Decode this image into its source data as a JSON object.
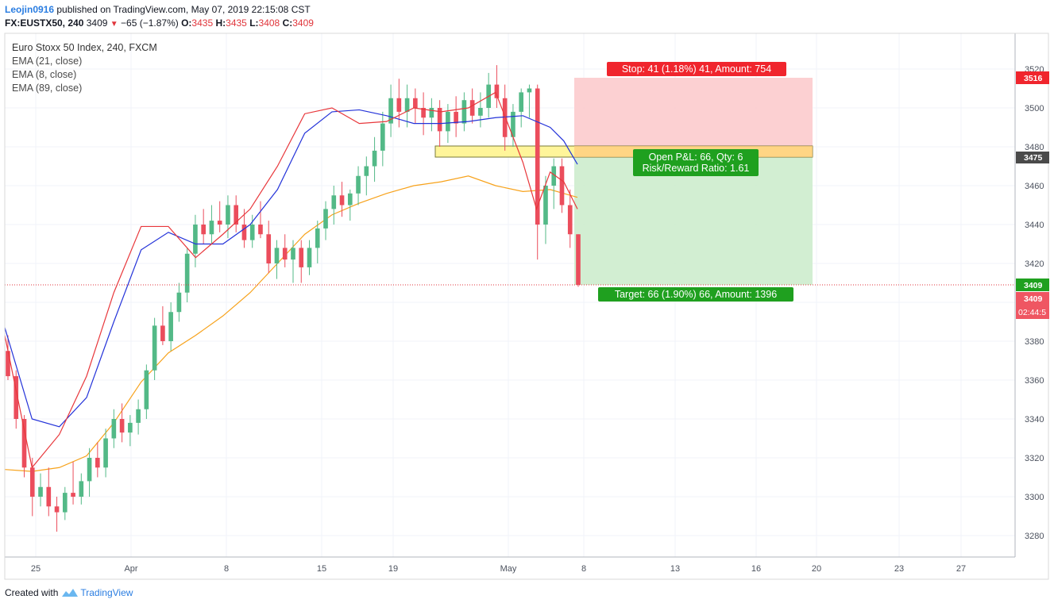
{
  "header": {
    "username": "Leojin0916",
    "published_text": "published on TradingView.com, May 07, 2019 22:15:08 CST",
    "symbol": "FX:EUSTX50, 240",
    "last_price": "3409",
    "change": "−65 (−1.87%)",
    "o_label": "O:",
    "o_value": "3435",
    "h_label": "H:",
    "h_value": "3435",
    "l_label": "L:",
    "l_value": "3408",
    "c_label": "C:",
    "c_value": "3409"
  },
  "legend": {
    "title": "Euro Stoxx 50 Index, 240, FXCM",
    "indicators": [
      "EMA (21, close)",
      "EMA (8, close)",
      "EMA (89, close)"
    ]
  },
  "labels": {
    "stop": "Stop: 41 (1.18%) 41, Amount: 754",
    "open_pnl": "Open P&L: 66, Qty: 6",
    "risk_reward": "Risk/Reward Ratio: 1.61",
    "target": "Target: 66 (1.90%) 66, Amount: 1396"
  },
  "price_tags": {
    "stop": "3516",
    "entry": "3475",
    "current": "3409",
    "last": "3409",
    "countdown": "02:44:5"
  },
  "footer": {
    "created_with": "Created with",
    "brand": "TradingView"
  },
  "colors": {
    "up": "#53b987",
    "down": "#eb4d5c",
    "ema21": "#2433d9",
    "ema8": "#e8373b",
    "ema89": "#f7a21b",
    "stop_zone": "#fccbcd",
    "target_zone": "#cdeccd",
    "entry_zone": "#fff59a"
  },
  "chart_data": {
    "type": "candlestick",
    "title": "Euro Stoxx 50 Index, 240, FXCM",
    "ylim": [
      3270,
      3530
    ],
    "y_ticks": [
      3280,
      3300,
      3320,
      3340,
      3360,
      3380,
      3400,
      3420,
      3440,
      3460,
      3480,
      3500,
      3520
    ],
    "x_ticks": [
      "25",
      "Apr",
      "8",
      "15",
      "19",
      "May",
      "8",
      "13",
      "16",
      "20",
      "23",
      "27"
    ],
    "series": [
      {
        "name": "EMA (21, close)",
        "x": [
          0,
          10,
          20,
          30,
          40,
          50,
          60,
          70,
          80,
          90,
          100,
          110,
          120,
          130,
          140,
          150,
          160,
          170,
          180,
          190,
          200,
          205,
          210
        ],
        "values": [
          3387,
          3340,
          3336,
          3351,
          3390,
          3427,
          3436,
          3430,
          3430,
          3440,
          3458,
          3487,
          3498,
          3499,
          3496,
          3492,
          3492,
          3493,
          3495,
          3496,
          3490,
          3483,
          3471
        ]
      },
      {
        "name": "EMA (8, close)",
        "x": [
          0,
          10,
          20,
          30,
          40,
          50,
          60,
          70,
          80,
          90,
          100,
          110,
          120,
          130,
          140,
          150,
          160,
          170,
          180,
          190,
          195,
          200,
          205,
          210
        ],
        "values": [
          3383,
          3315,
          3332,
          3362,
          3405,
          3439,
          3439,
          3423,
          3435,
          3448,
          3470,
          3497,
          3500,
          3492,
          3493,
          3500,
          3498,
          3500,
          3508,
          3472,
          3448,
          3467,
          3462,
          3448
        ]
      },
      {
        "name": "EMA (89, close)",
        "x": [
          0,
          10,
          20,
          30,
          40,
          50,
          60,
          70,
          80,
          90,
          100,
          110,
          120,
          130,
          140,
          150,
          160,
          170,
          180,
          190,
          200,
          205,
          210
        ],
        "values": [
          3314,
          3313,
          3315,
          3321,
          3338,
          3359,
          3374,
          3383,
          3393,
          3405,
          3420,
          3435,
          3445,
          3451,
          3456,
          3460,
          3462,
          3465,
          3460,
          3457,
          3458,
          3456,
          3454
        ]
      }
    ],
    "candles_note": "OHLC approximated from the screenshot",
    "candles": [
      [
        3375,
        3383,
        3360,
        3362
      ],
      [
        3362,
        3365,
        3335,
        3340
      ],
      [
        3340,
        3342,
        3310,
        3315
      ],
      [
        3315,
        3320,
        3290,
        3300
      ],
      [
        3300,
        3312,
        3295,
        3305
      ],
      [
        3305,
        3315,
        3290,
        3295
      ],
      [
        3295,
        3300,
        3282,
        3292
      ],
      [
        3292,
        3305,
        3288,
        3302
      ],
      [
        3302,
        3318,
        3296,
        3300
      ],
      [
        3300,
        3312,
        3296,
        3308
      ],
      [
        3308,
        3325,
        3300,
        3320
      ],
      [
        3320,
        3328,
        3310,
        3315
      ],
      [
        3315,
        3335,
        3310,
        3330
      ],
      [
        3330,
        3345,
        3325,
        3340
      ],
      [
        3340,
        3348,
        3328,
        3333
      ],
      [
        3333,
        3342,
        3326,
        3338
      ],
      [
        3338,
        3350,
        3332,
        3345
      ],
      [
        3345,
        3368,
        3340,
        3365
      ],
      [
        3365,
        3392,
        3360,
        3388
      ],
      [
        3388,
        3398,
        3378,
        3380
      ],
      [
        3380,
        3400,
        3375,
        3395
      ],
      [
        3395,
        3410,
        3390,
        3405
      ],
      [
        3405,
        3428,
        3400,
        3425
      ],
      [
        3425,
        3445,
        3418,
        3440
      ],
      [
        3440,
        3448,
        3430,
        3435
      ],
      [
        3435,
        3450,
        3430,
        3442
      ],
      [
        3442,
        3452,
        3436,
        3440
      ],
      [
        3440,
        3455,
        3433,
        3450
      ],
      [
        3450,
        3455,
        3436,
        3440
      ],
      [
        3440,
        3448,
        3428,
        3432
      ],
      [
        3432,
        3445,
        3428,
        3440
      ],
      [
        3440,
        3452,
        3433,
        3435
      ],
      [
        3435,
        3442,
        3415,
        3420
      ],
      [
        3420,
        3432,
        3412,
        3428
      ],
      [
        3428,
        3435,
        3418,
        3422
      ],
      [
        3422,
        3432,
        3410,
        3428
      ],
      [
        3428,
        3432,
        3410,
        3418
      ],
      [
        3418,
        3432,
        3414,
        3428
      ],
      [
        3428,
        3442,
        3420,
        3438
      ],
      [
        3438,
        3452,
        3432,
        3448
      ],
      [
        3448,
        3460,
        3440,
        3455
      ],
      [
        3455,
        3462,
        3444,
        3450
      ],
      [
        3450,
        3458,
        3442,
        3456
      ],
      [
        3456,
        3470,
        3450,
        3465
      ],
      [
        3465,
        3475,
        3455,
        3470
      ],
      [
        3470,
        3485,
        3462,
        3478
      ],
      [
        3478,
        3498,
        3470,
        3492
      ],
      [
        3492,
        3512,
        3485,
        3505
      ],
      [
        3505,
        3515,
        3490,
        3498
      ],
      [
        3498,
        3512,
        3490,
        3505
      ],
      [
        3505,
        3510,
        3492,
        3500
      ],
      [
        3500,
        3508,
        3486,
        3495
      ],
      [
        3495,
        3505,
        3488,
        3500
      ],
      [
        3500,
        3504,
        3480,
        3488
      ],
      [
        3488,
        3502,
        3482,
        3498
      ],
      [
        3498,
        3506,
        3485,
        3492
      ],
      [
        3492,
        3508,
        3488,
        3504
      ],
      [
        3504,
        3510,
        3492,
        3496
      ],
      [
        3496,
        3508,
        3490,
        3500
      ],
      [
        3500,
        3518,
        3495,
        3512
      ],
      [
        3512,
        3522,
        3500,
        3505
      ],
      [
        3505,
        3512,
        3478,
        3485
      ],
      [
        3485,
        3502,
        3480,
        3498
      ],
      [
        3498,
        3510,
        3490,
        3508
      ],
      [
        3508,
        3512,
        3495,
        3510
      ],
      [
        3510,
        3512,
        3422,
        3440
      ],
      [
        3440,
        3465,
        3430,
        3460
      ],
      [
        3460,
        3474,
        3448,
        3470
      ],
      [
        3470,
        3474,
        3446,
        3450
      ],
      [
        3450,
        3458,
        3428,
        3435
      ],
      [
        3435,
        3435,
        3408,
        3409
      ]
    ]
  }
}
